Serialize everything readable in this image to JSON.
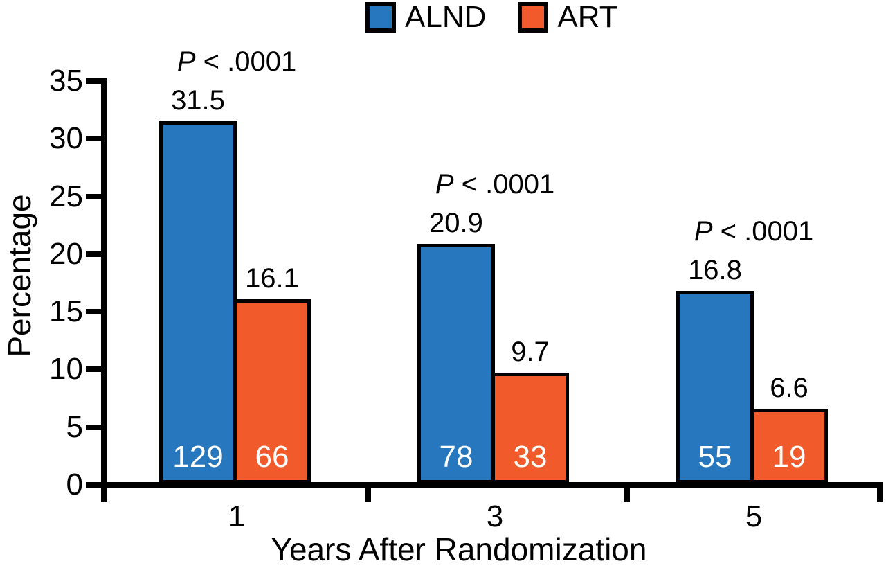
{
  "chart_data": {
    "type": "bar",
    "title": "",
    "xlabel": "Years After Randomization",
    "ylabel": "Percentage",
    "ylim": [
      0,
      35
    ],
    "yticks": [
      0,
      5,
      10,
      15,
      20,
      25,
      30,
      35
    ],
    "categories": [
      "1",
      "3",
      "5"
    ],
    "series": [
      {
        "name": "ALND",
        "color": "#2777BE",
        "values": [
          31.5,
          20.9,
          16.8
        ],
        "bar_counts": [
          "129",
          "78",
          "55"
        ]
      },
      {
        "name": "ART",
        "color": "#F15B2B",
        "values": [
          16.1,
          9.7,
          6.6
        ],
        "bar_counts": [
          "66",
          "33",
          "19"
        ]
      }
    ],
    "value_labels": {
      "ALND": [
        "31.5",
        "20.9",
        "16.8"
      ],
      "ART": [
        "16.1",
        "9.7",
        "6.6"
      ]
    },
    "group_annotations": [
      "P < .0001",
      "P < .0001",
      "P < .0001"
    ],
    "legend_position": "top",
    "grid": false,
    "axis_color": "#000000",
    "inside_bar_label_color": "#FFFFFF"
  }
}
